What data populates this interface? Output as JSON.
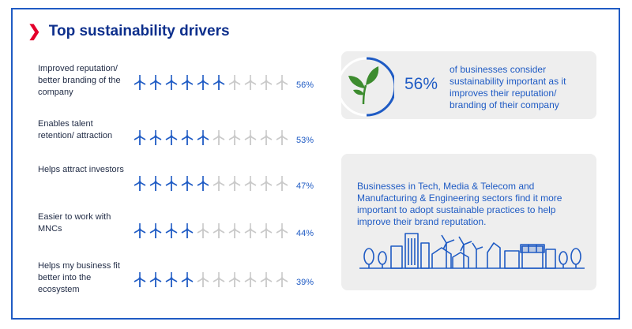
{
  "heading": "Top sustainability drivers",
  "colors": {
    "accent": "#1f5bc4",
    "title": "#0d2f8c",
    "chevron": "#e4002b",
    "turbine_inactive": "#c9c9c9",
    "card_bg": "#eeeeee",
    "leaf": "#3d8c2f"
  },
  "icons": {
    "unit": "wind-turbine-icon",
    "plant": "plant-icon",
    "skyline": "city-skyline-icon"
  },
  "chart_data": {
    "type": "bar",
    "categories": [
      "Improved reputation/ better branding of the company",
      "Enables talent retention/ attraction",
      "Helps attract investors",
      "Easier to work with MNCs",
      "Helps my business fit better into the ecosystem"
    ],
    "values": [
      56,
      53,
      47,
      44,
      39
    ],
    "value_labels": [
      "56%",
      "53%",
      "47%",
      "44%",
      "39%"
    ],
    "units_per_row": 10,
    "ylim": [
      0,
      100
    ]
  },
  "callout_1": {
    "value": "56%",
    "text": "of businesses consider sustainability important as it improves their reputation/ branding of their company"
  },
  "callout_2": {
    "text": "Businesses in Tech, Media & Telecom and Manufacturing & Engineering sectors find it more important to adopt sustainable practices to help improve their brand reputation."
  }
}
